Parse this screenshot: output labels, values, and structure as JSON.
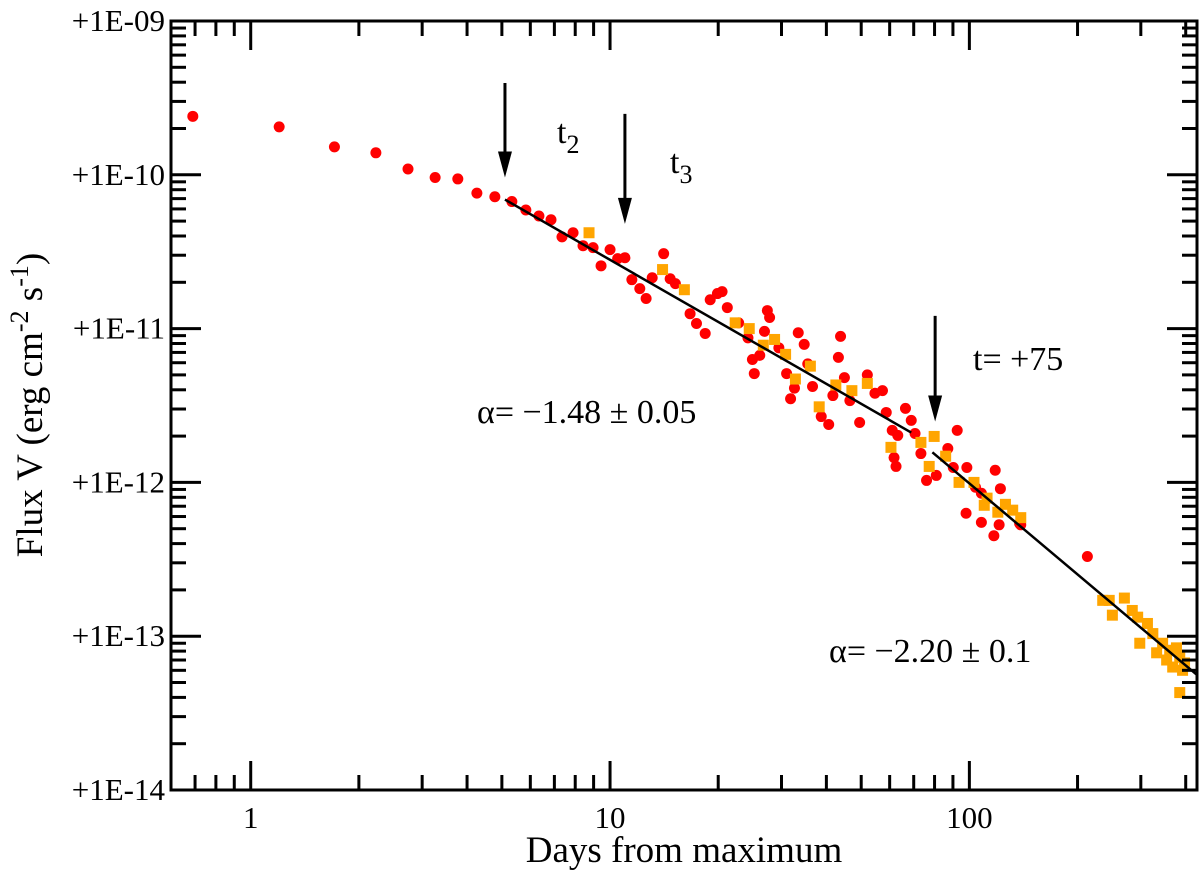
{
  "chart_data": {
    "type": "scatter",
    "title": "",
    "xlabel": "Days from maximum",
    "ylabel_parts": [
      "Flux V (erg cm",
      "-2",
      " s",
      "-1",
      ")"
    ],
    "xscale": "log",
    "yscale": "log",
    "xlim": [
      0.6,
      430
    ],
    "ylim": [
      1e-14,
      1e-09
    ],
    "grid": false,
    "legend": "none",
    "x_ticks": [
      {
        "value": 1,
        "label": "1"
      },
      {
        "value": 10,
        "label": "10"
      },
      {
        "value": 100,
        "label": "100"
      }
    ],
    "y_ticks": [
      {
        "value": 1e-14,
        "label": "+1E-14"
      },
      {
        "value": 1e-13,
        "label": "+1E-13"
      },
      {
        "value": 1e-12,
        "label": "+1E-12"
      },
      {
        "value": 1e-11,
        "label": "+1E-11"
      },
      {
        "value": 1e-10,
        "label": "+1E-10"
      },
      {
        "value": 1e-09,
        "label": "+1E-09"
      }
    ],
    "series": [
      {
        "marker": "circle",
        "color": "#FF0000",
        "points": [
          [
            0.69,
            2.4e-10
          ],
          [
            1.2,
            2.05e-10
          ],
          [
            1.71,
            1.52e-10
          ],
          [
            2.23,
            1.39e-10
          ],
          [
            2.74,
            1.09e-10
          ],
          [
            3.26,
            9.6e-11
          ],
          [
            3.77,
            9.4e-11
          ],
          [
            4.26,
            7.6e-11
          ],
          [
            4.78,
            7.2e-11
          ],
          [
            5.33,
            6.7e-11
          ],
          [
            5.83,
            5.9e-11
          ],
          [
            6.34,
            5.4e-11
          ],
          [
            6.85,
            5.1e-11
          ],
          [
            7.35,
            3.95e-11
          ],
          [
            7.89,
            4.2e-11
          ],
          [
            8.41,
            3.46e-11
          ],
          [
            8.97,
            3.36e-11
          ],
          [
            9.44,
            2.56e-11
          ],
          [
            10.0,
            3.26e-11
          ],
          [
            10.5,
            2.85e-11
          ],
          [
            11.0,
            2.89e-11
          ],
          [
            11.5,
            2.08e-11
          ],
          [
            12.1,
            1.82e-11
          ],
          [
            12.6,
            1.57e-11
          ],
          [
            14.1,
            3.07e-11
          ],
          [
            13.1,
            2.14e-11
          ],
          [
            14.7,
            2.11e-11
          ],
          [
            15.2,
            1.96e-11
          ],
          [
            16.7,
            1.25e-11
          ],
          [
            17.4,
            1.08e-11
          ],
          [
            18.4,
            9.3e-12
          ],
          [
            19.0,
            1.54e-11
          ],
          [
            19.9,
            1.69e-11
          ],
          [
            20.5,
            1.74e-11
          ],
          [
            21.2,
            1.37e-11
          ],
          [
            22.8,
            1.09e-11
          ],
          [
            24.2,
            8.7e-12
          ],
          [
            24.9,
            6.3e-12
          ],
          [
            25.2,
            5.1e-12
          ],
          [
            26.1,
            6.7e-12
          ],
          [
            26.9,
            9.6e-12
          ],
          [
            27.4,
            1.31e-11
          ],
          [
            27.8,
            1.18e-11
          ],
          [
            29.5,
            7.5e-12
          ],
          [
            31.0,
            5.1e-12
          ],
          [
            31.8,
            3.5e-12
          ],
          [
            32.6,
            4.1e-12
          ],
          [
            33.4,
            9.4e-12
          ],
          [
            34.7,
            7.9e-12
          ],
          [
            35.5,
            5.9e-12
          ],
          [
            36.6,
            4.2e-12
          ],
          [
            38.7,
            2.68e-12
          ],
          [
            40.6,
            2.38e-12
          ],
          [
            41.7,
            3.67e-12
          ],
          [
            43.2,
            6.5e-12
          ],
          [
            43.8,
            8.9e-12
          ],
          [
            44.9,
            4.8e-12
          ],
          [
            46.5,
            3.4e-12
          ],
          [
            49.5,
            2.45e-12
          ],
          [
            52.0,
            5e-12
          ],
          [
            54.6,
            3.8e-12
          ],
          [
            57.3,
            3.95e-12
          ],
          [
            58.7,
            2.85e-12
          ],
          [
            61.0,
            2.18e-12
          ],
          [
            63.2,
            2.02e-12
          ],
          [
            66.4,
            3.03e-12
          ],
          [
            68.9,
            2.53e-12
          ],
          [
            70.6,
            2.08e-12
          ],
          [
            61.7,
            1.45e-12
          ],
          [
            62.5,
            1.27e-12
          ],
          [
            73.3,
            1.54e-12
          ],
          [
            76.0,
            1.03e-12
          ],
          [
            80.9,
            1.11e-12
          ],
          [
            87.1,
            1.66e-12
          ],
          [
            92.5,
            2.18e-12
          ],
          [
            90.2,
            1.25e-12
          ],
          [
            98.4,
            1.25e-12
          ],
          [
            104,
            9.3e-13
          ],
          [
            108,
            8.5e-13
          ],
          [
            118,
            1.2e-12
          ],
          [
            122,
            9.1e-13
          ],
          [
            108,
            5.5e-13
          ],
          [
            117,
            4.5e-13
          ],
          [
            97.9,
            6.3e-13
          ],
          [
            139,
            5.3e-13
          ],
          [
            121,
            5.3e-13
          ],
          [
            138,
            5.4e-13
          ],
          [
            213,
            3.3e-13
          ]
        ]
      },
      {
        "marker": "square",
        "color": "#FFA500",
        "points": [
          [
            8.74,
            4.2e-11
          ],
          [
            14.0,
            2.42e-11
          ],
          [
            16.1,
            1.79e-11
          ],
          [
            22.3,
            1.09e-11
          ],
          [
            24.4,
            1e-11
          ],
          [
            26.7,
            7.8e-12
          ],
          [
            28.7,
            8.5e-12
          ],
          [
            30.8,
            6.8e-12
          ],
          [
            32.8,
            4.7e-12
          ],
          [
            36.1,
            5.7e-12
          ],
          [
            38.2,
            3.1e-12
          ],
          [
            42.5,
            4.3e-12
          ],
          [
            47.1,
            3.95e-12
          ],
          [
            52.0,
            4.4e-12
          ],
          [
            60.5,
            1.69e-12
          ],
          [
            73.3,
            1.82e-12
          ],
          [
            79.8,
            1.99e-12
          ],
          [
            77.3,
            1.27e-12
          ],
          [
            85.9,
            1.48e-12
          ],
          [
            93.6,
            1e-12
          ],
          [
            103,
            1e-12
          ],
          [
            112,
            7.9e-13
          ],
          [
            110,
            7.1e-13
          ],
          [
            120,
            6.4e-13
          ],
          [
            126,
            7.2e-13
          ],
          [
            132,
            6.6e-13
          ],
          [
            139,
            5.9e-13
          ],
          [
            235,
            1.71e-13
          ],
          [
            245,
            1.71e-13
          ],
          [
            250,
            1.37e-13
          ],
          [
            270,
            1.77e-13
          ],
          [
            284,
            1.47e-13
          ],
          [
            294,
            1.33e-13
          ],
          [
            313,
            1.21e-13
          ],
          [
            298,
            9e-14
          ],
          [
            324,
            1.04e-13
          ],
          [
            345,
            9e-14
          ],
          [
            361,
            8.1e-14
          ],
          [
            377,
            8.4e-14
          ],
          [
            332,
            7.8e-14
          ],
          [
            354,
            7e-14
          ],
          [
            385,
            7.3e-14
          ],
          [
            368,
            6.3e-14
          ],
          [
            392,
            6e-14
          ],
          [
            385,
            4.3e-14
          ],
          [
            397,
            6.7e-14
          ]
        ]
      }
    ],
    "fits": [
      {
        "label": "α= −1.48 ± 0.05",
        "from": [
          5.1,
          6.9e-11
        ],
        "to": [
          68.9,
          2.11e-12
        ]
      },
      {
        "label": "α= −2.20 ± 0.1",
        "from": [
          78.9,
          1.57e-12
        ],
        "to": [
          430,
          5.6e-14
        ]
      }
    ],
    "arrows": [
      {
        "label_main": "t",
        "label_sub": "2",
        "x": 5.1,
        "y_from": 3.95e-10,
        "y_to": 9.6e-11
      },
      {
        "label_main": "t",
        "label_sub": "3",
        "x": 11.0,
        "y_from": 2.49e-10,
        "y_to": 4.8e-11
      },
      {
        "label_main": "t= +75",
        "label_sub": "",
        "x": 80.3,
        "y_from": 1.21e-11,
        "y_to": 2.49e-12
      }
    ]
  }
}
